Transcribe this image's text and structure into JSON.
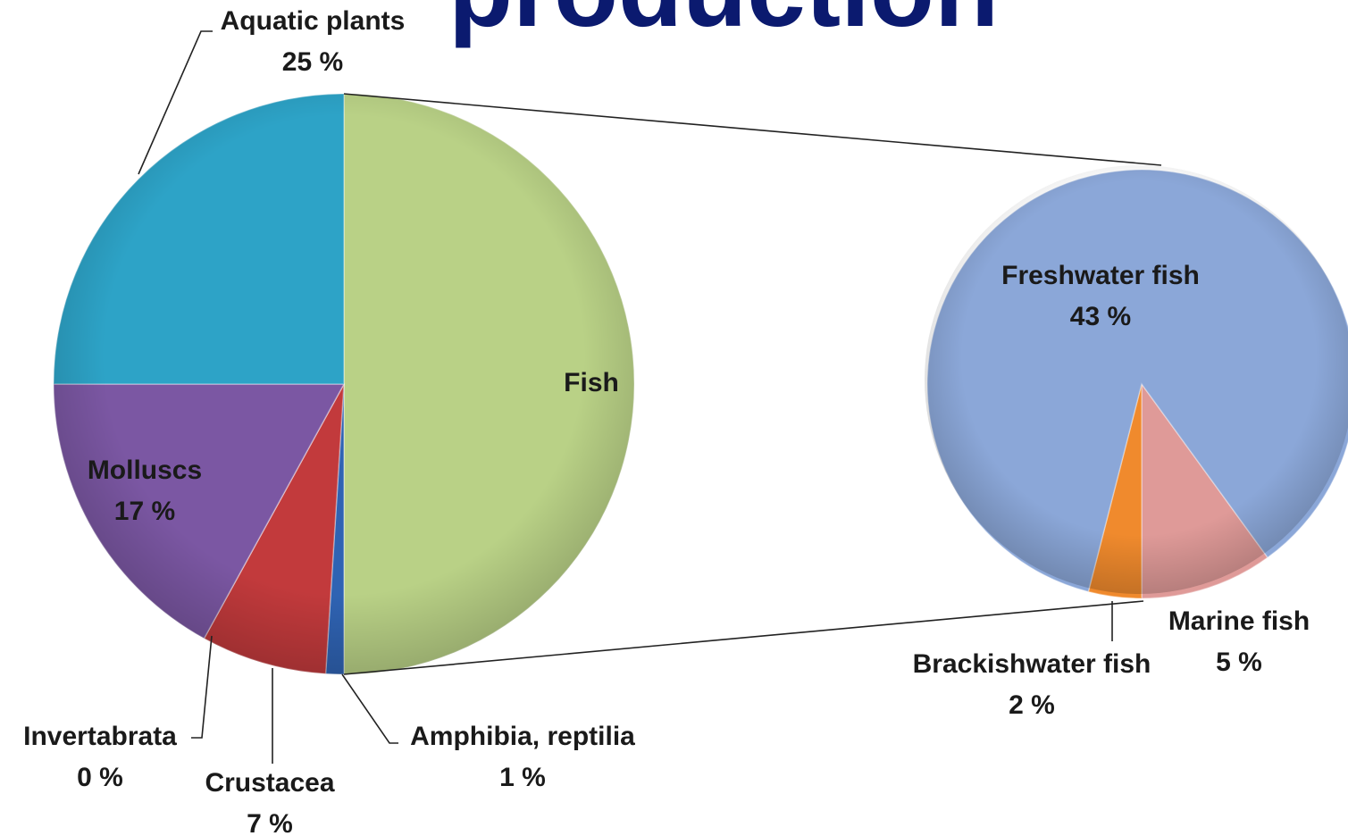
{
  "chart_data": [
    {
      "type": "pie",
      "title": "production",
      "categories": [
        "Fish",
        "Amphibia, reptilia",
        "Crustacea",
        "Invertabrata",
        "Molluscs",
        "Aquatic plants"
      ],
      "values": [
        50,
        1,
        7,
        0,
        17,
        25
      ],
      "value_labels": [
        null,
        "1 %",
        "7 %",
        "0 %",
        "17 %",
        "25 %"
      ],
      "colors": [
        "#b9d186",
        "#2f63b3",
        "#c23a3c",
        "#9bbb59",
        "#7b57a3",
        "#2da3c7"
      ]
    },
    {
      "type": "pie",
      "categories": [
        "Marine fish",
        "Brackishwater fish",
        "Freshwater fish"
      ],
      "values": [
        5,
        2,
        43
      ],
      "value_labels": [
        "5 %",
        "2 %",
        "43 %"
      ],
      "colors": [
        "#df9a98",
        "#f08a2d",
        "#8ba7d8"
      ]
    }
  ]
}
